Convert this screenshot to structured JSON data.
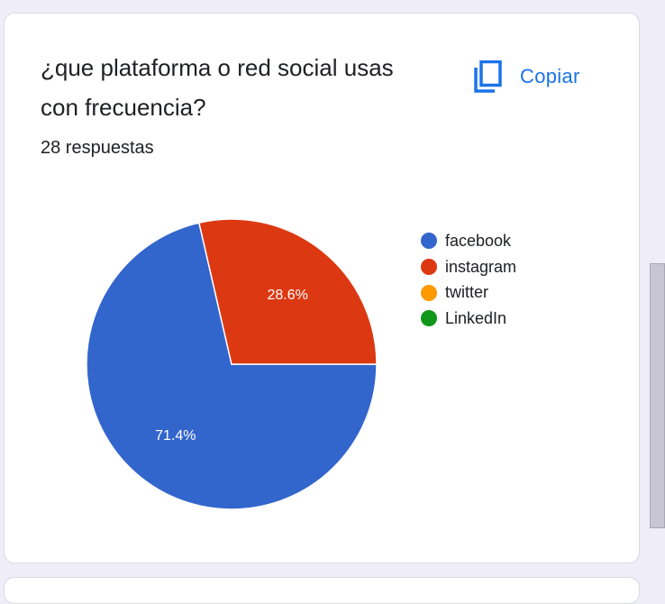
{
  "question": {
    "title": "¿que plataforma o red social usas con frecuencia?",
    "response_count": "28 respuestas"
  },
  "copy_button": {
    "label": "Copiar",
    "icon": "copy-icon",
    "color": "#1a73e8"
  },
  "chart_data": {
    "type": "pie",
    "title": "",
    "legend_position": "right",
    "categories": [
      "facebook",
      "instagram",
      "twitter",
      "LinkedIn"
    ],
    "values": [
      71.4,
      28.6,
      0,
      0
    ],
    "data_labels": [
      "71.4%",
      "28.6%",
      "",
      ""
    ],
    "colors": [
      "#3366cc",
      "#dc3912",
      "#ff9900",
      "#109618"
    ]
  }
}
